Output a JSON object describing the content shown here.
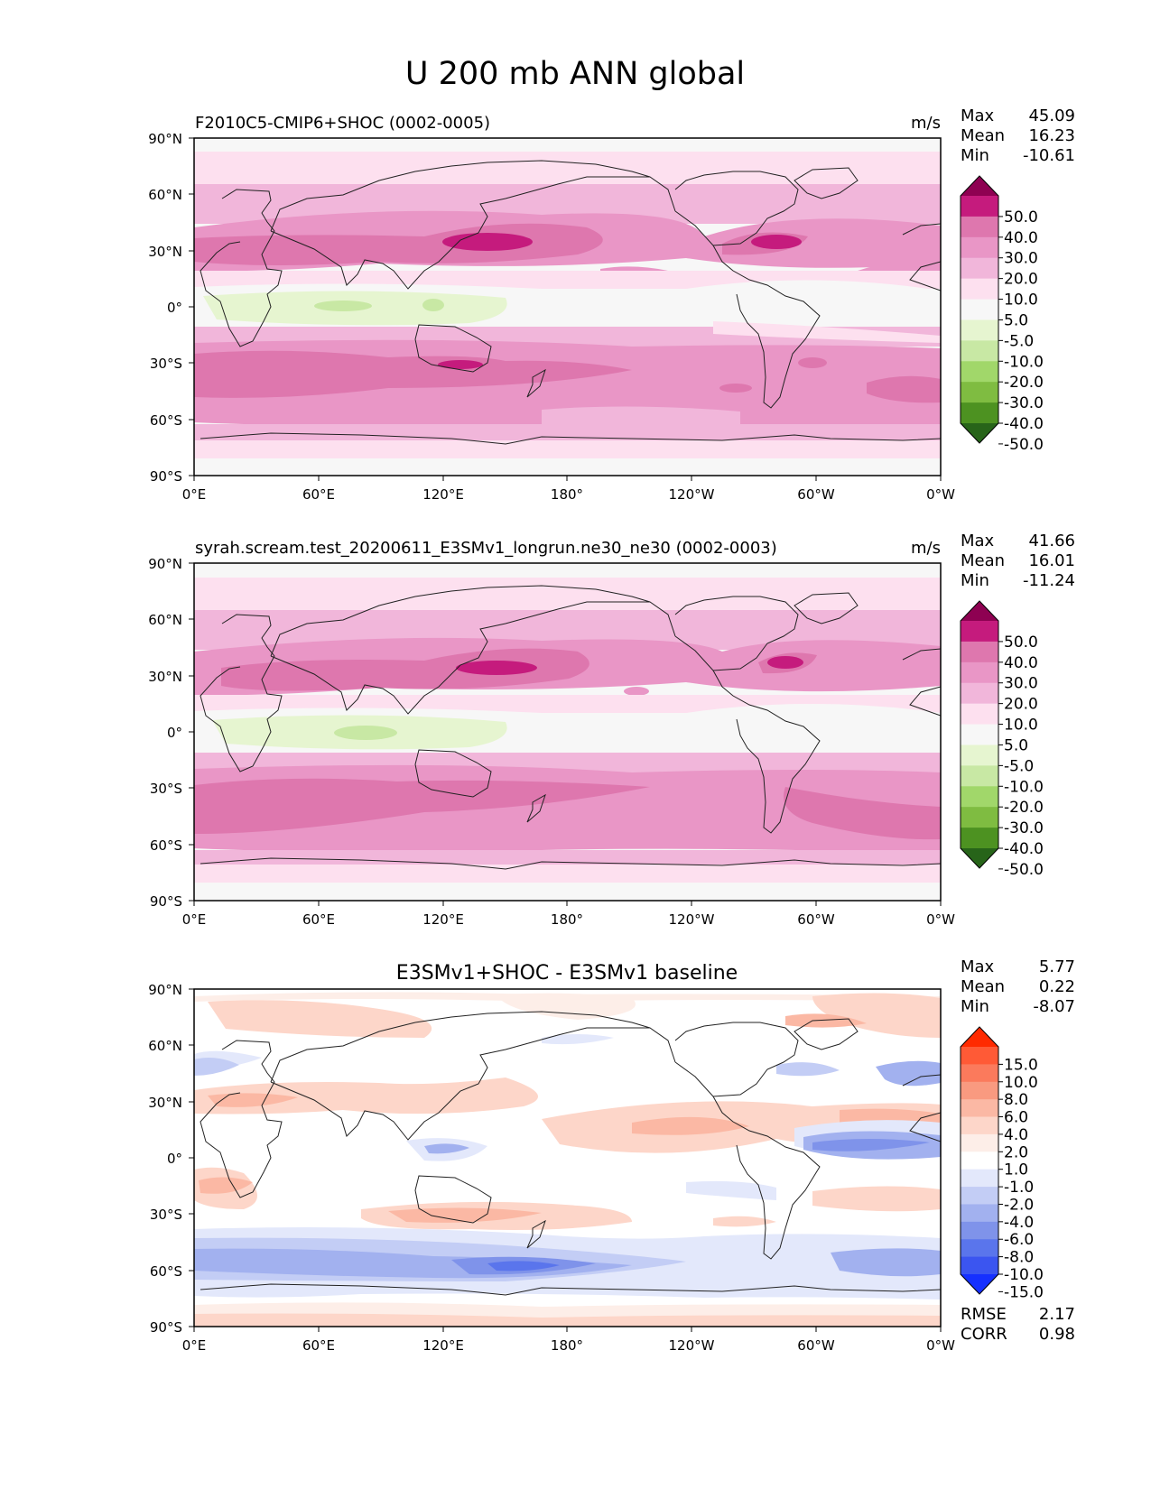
{
  "title": "U 200 mb ANN global",
  "lat_ticks": [
    "90°N",
    "60°N",
    "30°N",
    "0°",
    "30°S",
    "60°S",
    "90°S"
  ],
  "lon_ticks": [
    "0°E",
    "60°E",
    "120°E",
    "180°",
    "120°W",
    "60°W",
    "0°W"
  ],
  "panels": [
    {
      "left_title": "F2010C5-CMIP6+SHOC (0002-0005)",
      "units": "m/s",
      "stats": [
        {
          "label": "Max",
          "value": "45.09"
        },
        {
          "label": "Mean",
          "value": "16.23"
        },
        {
          "label": "Min",
          "value": "-10.61"
        }
      ],
      "colorbar": {
        "labels": [
          "50.0",
          "40.0",
          "30.0",
          "20.0",
          "10.0",
          "5.0",
          "-5.0",
          "-10.0",
          "-20.0",
          "-30.0",
          "-40.0",
          "-50.0"
        ],
        "colors": [
          "#8e0152",
          "#c51b7d",
          "#de77ae",
          "#e996c6",
          "#f1b6da",
          "#fde0ef",
          "#f7f7f7",
          "#e6f5d0",
          "#c8e8a4",
          "#a1d76a",
          "#7fbc41",
          "#4d9221",
          "#276419"
        ]
      }
    },
    {
      "left_title": "syrah.scream.test_20200611_E3SMv1_longrun.ne30_ne30 (0002-0003)",
      "units": "m/s",
      "stats": [
        {
          "label": "Max",
          "value": "41.66"
        },
        {
          "label": "Mean",
          "value": "16.01"
        },
        {
          "label": "Min",
          "value": "-11.24"
        }
      ],
      "colorbar": {
        "labels": [
          "50.0",
          "40.0",
          "30.0",
          "20.0",
          "10.0",
          "5.0",
          "-5.0",
          "-10.0",
          "-20.0",
          "-30.0",
          "-40.0",
          "-50.0"
        ],
        "colors": [
          "#8e0152",
          "#c51b7d",
          "#de77ae",
          "#e996c6",
          "#f1b6da",
          "#fde0ef",
          "#f7f7f7",
          "#e6f5d0",
          "#c8e8a4",
          "#a1d76a",
          "#7fbc41",
          "#4d9221",
          "#276419"
        ]
      }
    },
    {
      "center_title": "E3SMv1+SHOC - E3SMv1 baseline",
      "stats": [
        {
          "label": "Max",
          "value": "5.77"
        },
        {
          "label": "Mean",
          "value": "0.22"
        },
        {
          "label": "Min",
          "value": "-8.07"
        }
      ],
      "extra_stats": [
        {
          "label": "RMSE",
          "value": "2.17"
        },
        {
          "label": "CORR",
          "value": "0.98"
        }
      ],
      "colorbar": {
        "labels": [
          "15.0",
          "10.0",
          "8.0",
          "6.0",
          "4.0",
          "2.0",
          "1.0",
          "-1.0",
          "-2.0",
          "-4.0",
          "-6.0",
          "-8.0",
          "-10.0",
          "-15.0"
        ],
        "colors": [
          "#ff2a00",
          "#ff5a36",
          "#fb7a5c",
          "#f99a80",
          "#fbb8a4",
          "#fdd6c9",
          "#fdeee8",
          "#ffffff",
          "#e3e8fb",
          "#c3cdf5",
          "#a2b1ef",
          "#7f93ea",
          "#5a75ec",
          "#3b55f0",
          "#1530ff"
        ]
      }
    }
  ]
}
